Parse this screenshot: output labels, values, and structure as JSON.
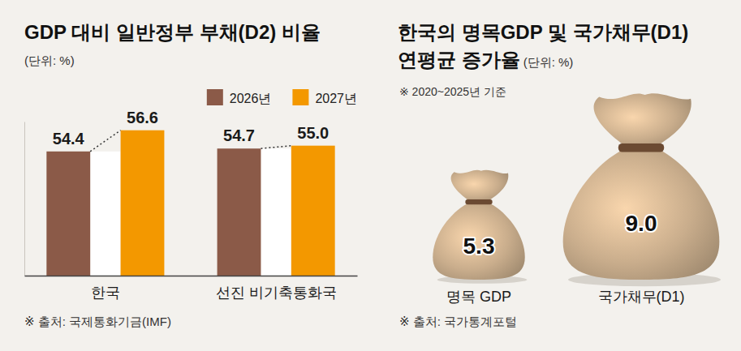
{
  "chart_data": [
    {
      "type": "bar",
      "title": "GDP 대비 일반정부 부채(D2) 비율",
      "subtitle": "(단위: %)",
      "categories": [
        "한국",
        "선진 비기축통화국"
      ],
      "series": [
        {
          "name": "2026년",
          "color": "#8b5a48",
          "values": [
            54.4,
            54.7
          ],
          "value_labels": [
            "54.4",
            "54.7"
          ]
        },
        {
          "name": "2027년",
          "color": "#f39800",
          "values": [
            56.6,
            55.0
          ],
          "value_labels": [
            "56.6",
            "55.0"
          ]
        }
      ],
      "ylim": [
        41.5,
        57.5
      ],
      "yticks": [],
      "legend": "top-right",
      "data_labels": true,
      "tick_labels": "x",
      "source": "※ 출처: 국제통화기금(IMF)"
    },
    {
      "type": "pictorial",
      "title": "한국의 명목GDP 및 국가채무(D1) 연평균 증가율",
      "subtitle": "(단위: %)",
      "note": "※ 2020~2025년 기준",
      "categories": [
        "명목 GDP",
        "국가채무(D1)"
      ],
      "values": [
        5.3,
        9.0
      ],
      "value_labels": [
        "5.3",
        "9.0"
      ],
      "color": "#c9ad8c",
      "data_labels": true,
      "source": "※ 출처: 국가통계포털"
    }
  ]
}
